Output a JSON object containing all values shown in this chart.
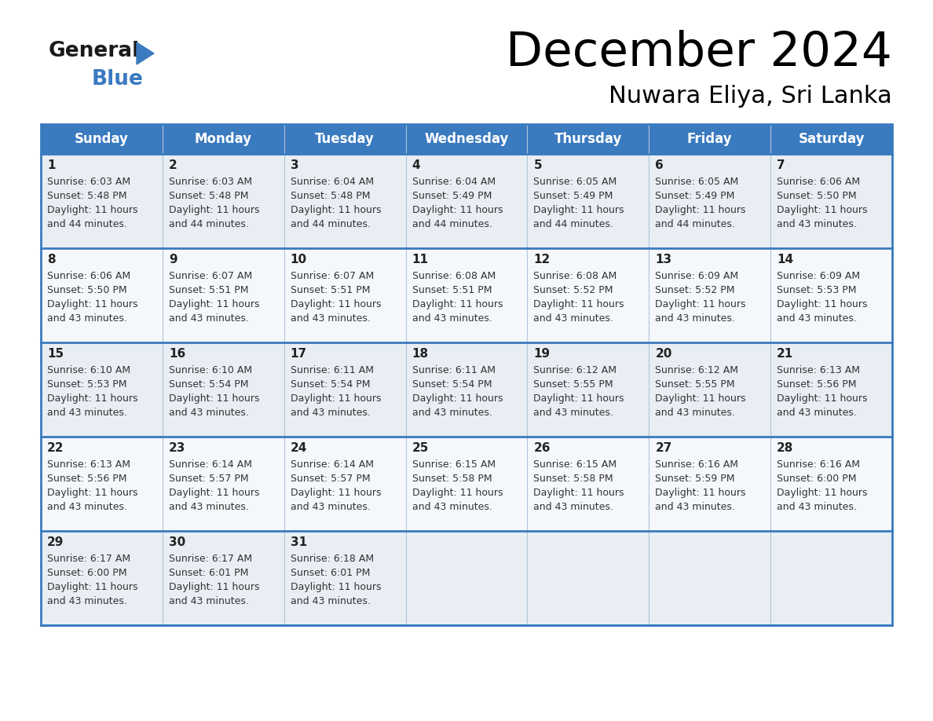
{
  "title": "December 2024",
  "subtitle": "Nuwara Eliya, Sri Lanka",
  "header_bg": "#3a7abf",
  "header_text": "#ffffff",
  "row_bg_odd": "#e8eef4",
  "row_bg_even": "#f5f8fb",
  "border_color": "#3a7abf",
  "cell_border_color": "#b0c4d8",
  "days_of_week": [
    "Sunday",
    "Monday",
    "Tuesday",
    "Wednesday",
    "Thursday",
    "Friday",
    "Saturday"
  ],
  "calendar_data": [
    [
      {
        "day": 1,
        "sunrise": "6:03 AM",
        "sunset": "5:48 PM",
        "daylight_l1": "11 hours",
        "daylight_l2": "and 44 minutes."
      },
      {
        "day": 2,
        "sunrise": "6:03 AM",
        "sunset": "5:48 PM",
        "daylight_l1": "11 hours",
        "daylight_l2": "and 44 minutes."
      },
      {
        "day": 3,
        "sunrise": "6:04 AM",
        "sunset": "5:48 PM",
        "daylight_l1": "11 hours",
        "daylight_l2": "and 44 minutes."
      },
      {
        "day": 4,
        "sunrise": "6:04 AM",
        "sunset": "5:49 PM",
        "daylight_l1": "11 hours",
        "daylight_l2": "and 44 minutes."
      },
      {
        "day": 5,
        "sunrise": "6:05 AM",
        "sunset": "5:49 PM",
        "daylight_l1": "11 hours",
        "daylight_l2": "and 44 minutes."
      },
      {
        "day": 6,
        "sunrise": "6:05 AM",
        "sunset": "5:49 PM",
        "daylight_l1": "11 hours",
        "daylight_l2": "and 44 minutes."
      },
      {
        "day": 7,
        "sunrise": "6:06 AM",
        "sunset": "5:50 PM",
        "daylight_l1": "11 hours",
        "daylight_l2": "and 43 minutes."
      }
    ],
    [
      {
        "day": 8,
        "sunrise": "6:06 AM",
        "sunset": "5:50 PM",
        "daylight_l1": "11 hours",
        "daylight_l2": "and 43 minutes."
      },
      {
        "day": 9,
        "sunrise": "6:07 AM",
        "sunset": "5:51 PM",
        "daylight_l1": "11 hours",
        "daylight_l2": "and 43 minutes."
      },
      {
        "day": 10,
        "sunrise": "6:07 AM",
        "sunset": "5:51 PM",
        "daylight_l1": "11 hours",
        "daylight_l2": "and 43 minutes."
      },
      {
        "day": 11,
        "sunrise": "6:08 AM",
        "sunset": "5:51 PM",
        "daylight_l1": "11 hours",
        "daylight_l2": "and 43 minutes."
      },
      {
        "day": 12,
        "sunrise": "6:08 AM",
        "sunset": "5:52 PM",
        "daylight_l1": "11 hours",
        "daylight_l2": "and 43 minutes."
      },
      {
        "day": 13,
        "sunrise": "6:09 AM",
        "sunset": "5:52 PM",
        "daylight_l1": "11 hours",
        "daylight_l2": "and 43 minutes."
      },
      {
        "day": 14,
        "sunrise": "6:09 AM",
        "sunset": "5:53 PM",
        "daylight_l1": "11 hours",
        "daylight_l2": "and 43 minutes."
      }
    ],
    [
      {
        "day": 15,
        "sunrise": "6:10 AM",
        "sunset": "5:53 PM",
        "daylight_l1": "11 hours",
        "daylight_l2": "and 43 minutes."
      },
      {
        "day": 16,
        "sunrise": "6:10 AM",
        "sunset": "5:54 PM",
        "daylight_l1": "11 hours",
        "daylight_l2": "and 43 minutes."
      },
      {
        "day": 17,
        "sunrise": "6:11 AM",
        "sunset": "5:54 PM",
        "daylight_l1": "11 hours",
        "daylight_l2": "and 43 minutes."
      },
      {
        "day": 18,
        "sunrise": "6:11 AM",
        "sunset": "5:54 PM",
        "daylight_l1": "11 hours",
        "daylight_l2": "and 43 minutes."
      },
      {
        "day": 19,
        "sunrise": "6:12 AM",
        "sunset": "5:55 PM",
        "daylight_l1": "11 hours",
        "daylight_l2": "and 43 minutes."
      },
      {
        "day": 20,
        "sunrise": "6:12 AM",
        "sunset": "5:55 PM",
        "daylight_l1": "11 hours",
        "daylight_l2": "and 43 minutes."
      },
      {
        "day": 21,
        "sunrise": "6:13 AM",
        "sunset": "5:56 PM",
        "daylight_l1": "11 hours",
        "daylight_l2": "and 43 minutes."
      }
    ],
    [
      {
        "day": 22,
        "sunrise": "6:13 AM",
        "sunset": "5:56 PM",
        "daylight_l1": "11 hours",
        "daylight_l2": "and 43 minutes."
      },
      {
        "day": 23,
        "sunrise": "6:14 AM",
        "sunset": "5:57 PM",
        "daylight_l1": "11 hours",
        "daylight_l2": "and 43 minutes."
      },
      {
        "day": 24,
        "sunrise": "6:14 AM",
        "sunset": "5:57 PM",
        "daylight_l1": "11 hours",
        "daylight_l2": "and 43 minutes."
      },
      {
        "day": 25,
        "sunrise": "6:15 AM",
        "sunset": "5:58 PM",
        "daylight_l1": "11 hours",
        "daylight_l2": "and 43 minutes."
      },
      {
        "day": 26,
        "sunrise": "6:15 AM",
        "sunset": "5:58 PM",
        "daylight_l1": "11 hours",
        "daylight_l2": "and 43 minutes."
      },
      {
        "day": 27,
        "sunrise": "6:16 AM",
        "sunset": "5:59 PM",
        "daylight_l1": "11 hours",
        "daylight_l2": "and 43 minutes."
      },
      {
        "day": 28,
        "sunrise": "6:16 AM",
        "sunset": "6:00 PM",
        "daylight_l1": "11 hours",
        "daylight_l2": "and 43 minutes."
      }
    ],
    [
      {
        "day": 29,
        "sunrise": "6:17 AM",
        "sunset": "6:00 PM",
        "daylight_l1": "11 hours",
        "daylight_l2": "and 43 minutes."
      },
      {
        "day": 30,
        "sunrise": "6:17 AM",
        "sunset": "6:01 PM",
        "daylight_l1": "11 hours",
        "daylight_l2": "and 43 minutes."
      },
      {
        "day": 31,
        "sunrise": "6:18 AM",
        "sunset": "6:01 PM",
        "daylight_l1": "11 hours",
        "daylight_l2": "and 43 minutes."
      },
      null,
      null,
      null,
      null
    ]
  ],
  "logo_general_color": "#1a1a1a",
  "logo_blue_color": "#3a7abf",
  "logo_triangle_color": "#3a7abf"
}
